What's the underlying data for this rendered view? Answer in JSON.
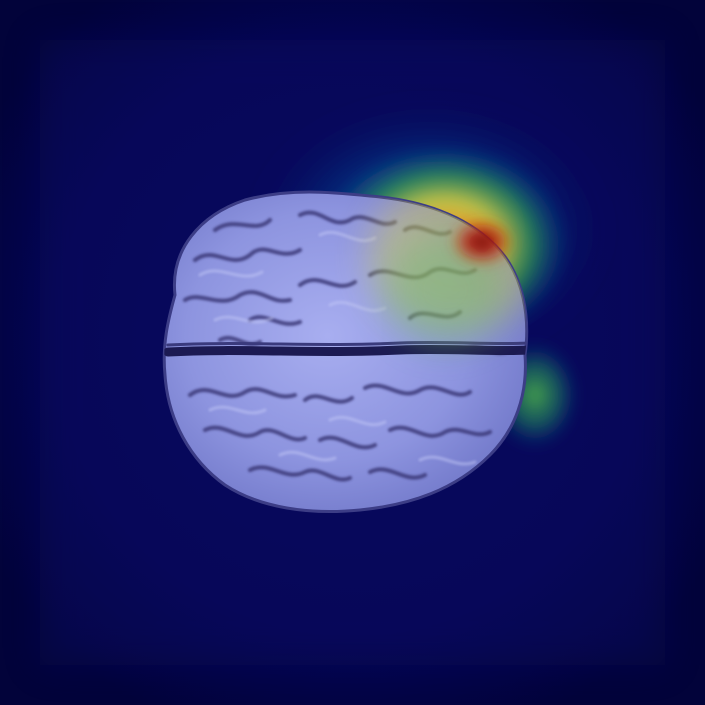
{
  "image": {
    "subject": "brain-mri-axial-slice",
    "overlay": "activation-heatmap",
    "colors": {
      "background": "#03043f",
      "brain_tint": "#8e96e0",
      "brain_highlight": "#b7bdf2",
      "sulcus_dark": "#34306a",
      "heat_outer_green": "#1f8d4a",
      "heat_yellow": "#e7d23a",
      "heat_orange": "#e9641a",
      "heat_core_red": "#7a0a0a"
    }
  }
}
